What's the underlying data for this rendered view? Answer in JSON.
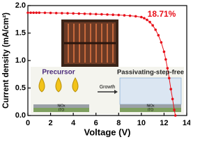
{
  "chart_data": {
    "type": "line",
    "xlabel": "Voltage (V)",
    "ylabel": "Current density (mA/cm²)",
    "x": [
      0,
      0.25,
      0.5,
      0.75,
      1,
      1.5,
      2,
      2.5,
      3,
      3.5,
      4,
      4.5,
      5,
      5.5,
      6,
      6.5,
      7,
      7.5,
      8,
      8.5,
      9,
      9.5,
      10,
      10.25,
      10.5,
      10.75,
      11,
      11.25,
      11.5,
      11.75,
      12,
      12.15,
      12.3,
      12.45,
      12.6,
      12.75,
      12.9,
      13
    ],
    "values": [
      1.87,
      1.87,
      1.87,
      1.87,
      1.87,
      1.868,
      1.866,
      1.864,
      1.862,
      1.86,
      1.857,
      1.854,
      1.851,
      1.848,
      1.845,
      1.841,
      1.837,
      1.833,
      1.828,
      1.822,
      1.815,
      1.805,
      1.79,
      1.77,
      1.74,
      1.7,
      1.64,
      1.56,
      1.46,
      1.33,
      1.16,
      1.02,
      0.86,
      0.68,
      0.48,
      0.3,
      0.1,
      0
    ],
    "color": "#e8101a",
    "xlim": [
      0,
      14
    ],
    "xticks": [
      0,
      2,
      4,
      6,
      8,
      10,
      12,
      14
    ],
    "ylim": [
      0,
      2
    ],
    "yticks": [
      {
        "value": 0,
        "label": "0.0"
      },
      0.5,
      {
        "value": 1,
        "label": "1.0"
      },
      1.5,
      {
        "value": 2,
        "label": "2.0"
      }
    ],
    "grid": false,
    "annotations": [
      "18.71%",
      "Precursor",
      "Passivating-step-free",
      "Growth",
      "NiOx",
      "ITO",
      "NiOx",
      "ITO"
    ]
  }
}
